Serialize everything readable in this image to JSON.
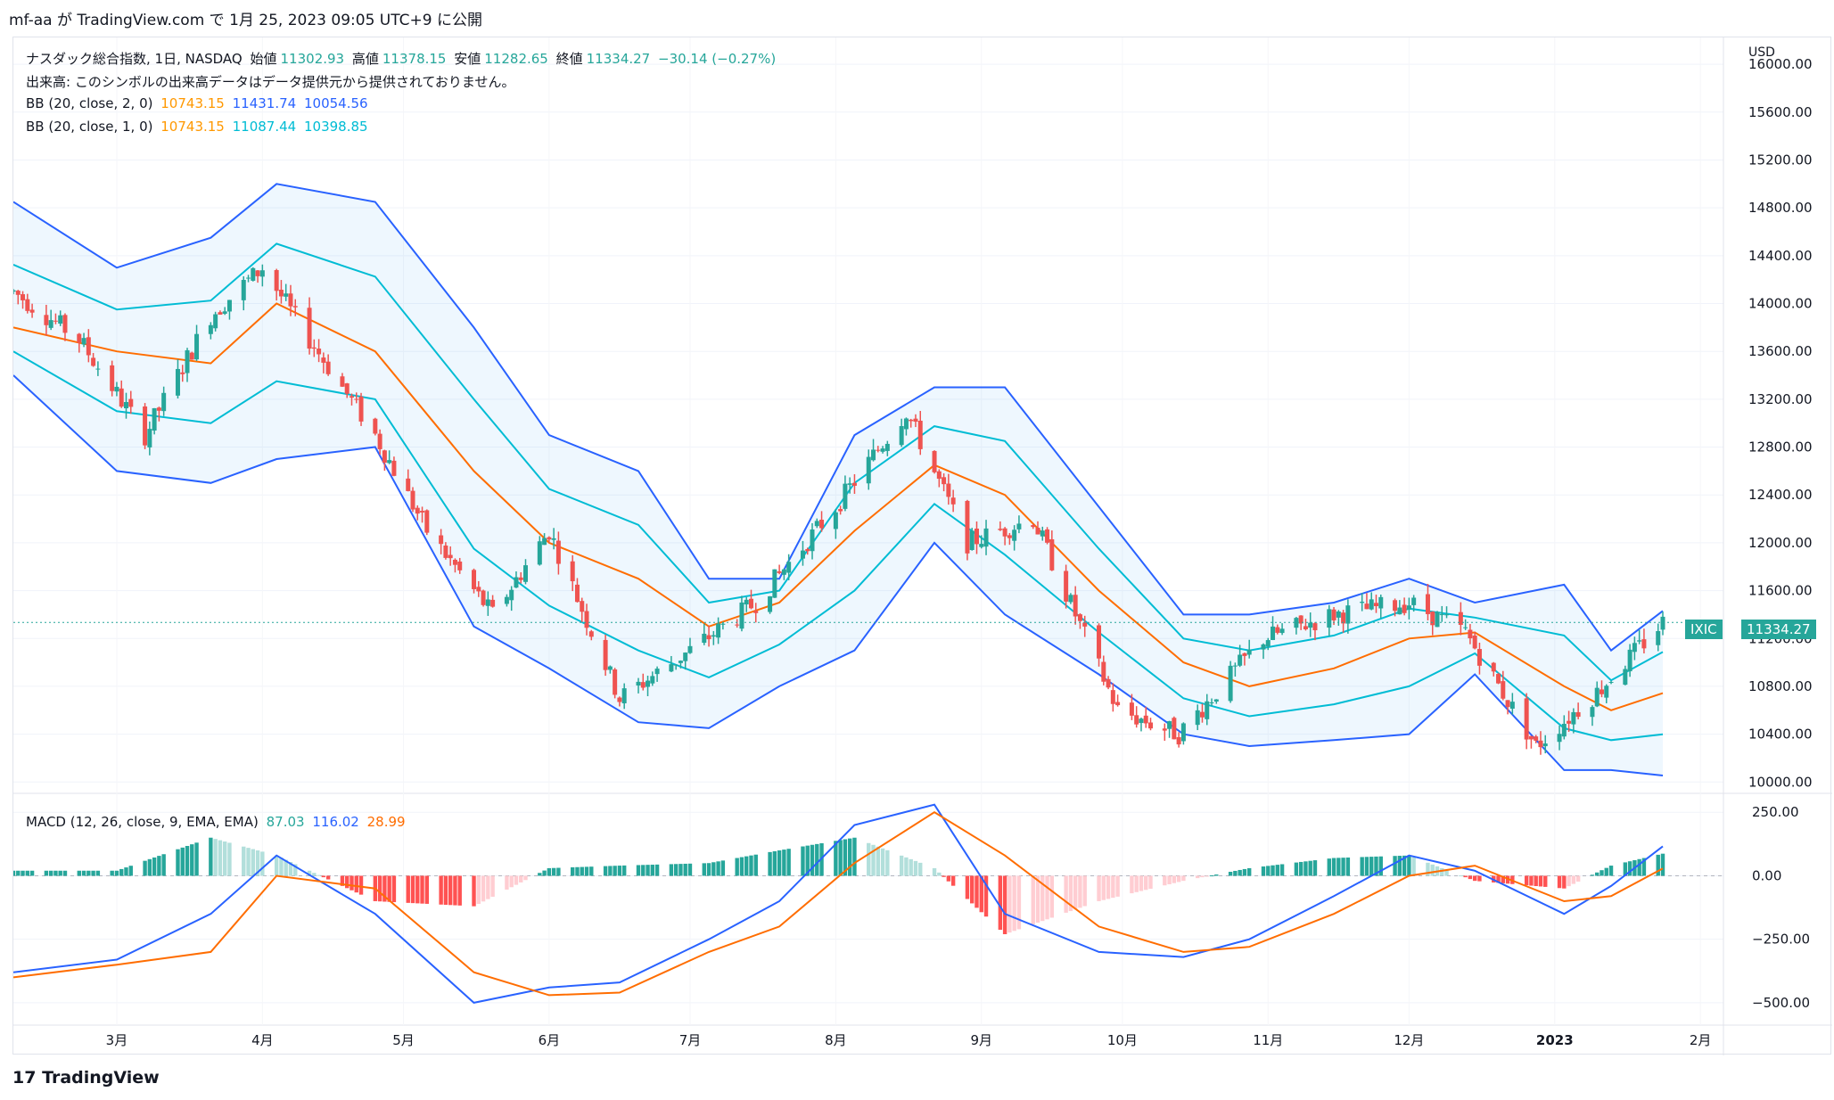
{
  "header": {
    "title": "mf-aa が TradingView.com で 1月 25, 2023 09:05 UTC+9 に公開"
  },
  "legend": {
    "symbol": "ナスダック総合指数, 1日, NASDAQ",
    "open_label": "始値",
    "open": "11302.93",
    "high_label": "高値",
    "high": "11378.15",
    "low_label": "安値",
    "low": "11282.65",
    "close_label": "終値",
    "close": "11334.27",
    "change": "−30.14 (−0.27%)",
    "volume_note": "出来高: このシンボルの出来高データはデータ提供元から提供されておりません。",
    "bb2_label": "BB (20, close, 2, 0)",
    "bb2_mid": "10743.15",
    "bb2_upper": "11431.74",
    "bb2_lower": "10054.56",
    "bb1_label": "BB (20, close, 1, 0)",
    "bb1_mid": "10743.15",
    "bb1_upper": "11087.44",
    "bb1_lower": "10398.85",
    "macd_label": "MACD (12, 26, close, 9, EMA, EMA)",
    "macd_hist": "87.03",
    "macd": "116.02",
    "signal": "28.99"
  },
  "axis": {
    "currency": "USD",
    "price_ticks": [
      "16000.00",
      "15600.00",
      "15200.00",
      "14800.00",
      "14400.00",
      "14000.00",
      "13600.00",
      "13200.00",
      "12800.00",
      "12400.00",
      "12000.00",
      "11600.00",
      "11200.00",
      "10800.00",
      "10400.00",
      "10000.00"
    ],
    "macd_ticks": [
      "250.00",
      "0.00",
      "−250.00",
      "−500.00"
    ],
    "month_labels": [
      "3月",
      "4月",
      "5月",
      "6月",
      "7月",
      "8月",
      "9月",
      "10月",
      "11月",
      "12月",
      "2023",
      "2月"
    ]
  },
  "last_price": {
    "symbol": "IXIC",
    "value": "11334.27"
  },
  "footer": {
    "brand": "TradingView"
  },
  "colors": {
    "up": "#26a69a",
    "down": "#ef5350",
    "bb_outer": "#2962ff",
    "bb_inner": "#00bcd4",
    "bb_mid": "#ff6d00",
    "macd": "#2962ff",
    "signal": "#ff6d00"
  },
  "chart_data": {
    "type": "candlestick",
    "x_range": [
      "2022-02-07",
      "2023-01-24"
    ],
    "ylim": [
      9950,
      16150
    ],
    "macd_ylim": [
      -560,
      300
    ],
    "price_series": [
      {
        "date": "2022-02-07",
        "c": 14100
      },
      {
        "date": "2022-02-21",
        "c": 13700
      },
      {
        "date": "2022-03-07",
        "c": 12900
      },
      {
        "date": "2022-03-21",
        "c": 13900
      },
      {
        "date": "2022-04-01",
        "c": 14300
      },
      {
        "date": "2022-04-11",
        "c": 13700
      },
      {
        "date": "2022-04-25",
        "c": 12900
      },
      {
        "date": "2022-05-06",
        "c": 12100
      },
      {
        "date": "2022-05-20",
        "c": 11400
      },
      {
        "date": "2022-06-01",
        "c": 12100
      },
      {
        "date": "2022-06-16",
        "c": 10700
      },
      {
        "date": "2022-07-01",
        "c": 11100
      },
      {
        "date": "2022-07-15",
        "c": 11500
      },
      {
        "date": "2022-08-01",
        "c": 12300
      },
      {
        "date": "2022-08-16",
        "c": 13100
      },
      {
        "date": "2022-08-29",
        "c": 12000
      },
      {
        "date": "2022-09-12",
        "c": 12200
      },
      {
        "date": "2022-09-30",
        "c": 10600
      },
      {
        "date": "2022-10-13",
        "c": 10400
      },
      {
        "date": "2022-10-31",
        "c": 11200
      },
      {
        "date": "2022-11-15",
        "c": 11400
      },
      {
        "date": "2022-12-01",
        "c": 11500
      },
      {
        "date": "2022-12-13",
        "c": 11250
      },
      {
        "date": "2022-12-28",
        "c": 10300
      },
      {
        "date": "2023-01-10",
        "c": 10750
      },
      {
        "date": "2023-01-24",
        "c": 11334
      }
    ],
    "bb_mid": [
      {
        "date": "2022-02-07",
        "v": 13800
      },
      {
        "date": "2022-03-01",
        "v": 13600
      },
      {
        "date": "2022-03-21",
        "v": 13500
      },
      {
        "date": "2022-04-04",
        "v": 14000
      },
      {
        "date": "2022-04-25",
        "v": 13600
      },
      {
        "date": "2022-05-16",
        "v": 12600
      },
      {
        "date": "2022-06-01",
        "v": 12000
      },
      {
        "date": "2022-06-20",
        "v": 11700
      },
      {
        "date": "2022-07-05",
        "v": 11300
      },
      {
        "date": "2022-07-20",
        "v": 11500
      },
      {
        "date": "2022-08-05",
        "v": 12100
      },
      {
        "date": "2022-08-22",
        "v": 12650
      },
      {
        "date": "2022-09-06",
        "v": 12400
      },
      {
        "date": "2022-09-26",
        "v": 11600
      },
      {
        "date": "2022-10-14",
        "v": 11000
      },
      {
        "date": "2022-10-28",
        "v": 10800
      },
      {
        "date": "2022-11-15",
        "v": 10950
      },
      {
        "date": "2022-12-01",
        "v": 11200
      },
      {
        "date": "2022-12-15",
        "v": 11250
      },
      {
        "date": "2023-01-03",
        "v": 10800
      },
      {
        "date": "2023-01-13",
        "v": 10600
      },
      {
        "date": "2023-01-24",
        "v": 10743
      }
    ],
    "bb_upper2": [
      {
        "date": "2022-02-07",
        "v": 14850
      },
      {
        "date": "2022-03-01",
        "v": 14300
      },
      {
        "date": "2022-03-21",
        "v": 14550
      },
      {
        "date": "2022-04-04",
        "v": 15000
      },
      {
        "date": "2022-04-25",
        "v": 14850
      },
      {
        "date": "2022-05-16",
        "v": 13800
      },
      {
        "date": "2022-06-01",
        "v": 12900
      },
      {
        "date": "2022-06-20",
        "v": 12600
      },
      {
        "date": "2022-07-05",
        "v": 11700
      },
      {
        "date": "2022-07-20",
        "v": 11700
      },
      {
        "date": "2022-08-05",
        "v": 12900
      },
      {
        "date": "2022-08-22",
        "v": 13300
      },
      {
        "date": "2022-09-06",
        "v": 13300
      },
      {
        "date": "2022-09-26",
        "v": 12300
      },
      {
        "date": "2022-10-14",
        "v": 11400
      },
      {
        "date": "2022-10-28",
        "v": 11400
      },
      {
        "date": "2022-11-15",
        "v": 11500
      },
      {
        "date": "2022-12-01",
        "v": 11700
      },
      {
        "date": "2022-12-15",
        "v": 11500
      },
      {
        "date": "2023-01-03",
        "v": 11650
      },
      {
        "date": "2023-01-13",
        "v": 11100
      },
      {
        "date": "2023-01-24",
        "v": 11431
      }
    ],
    "bb_lower2": [
      {
        "date": "2022-02-07",
        "v": 13400
      },
      {
        "date": "2022-03-01",
        "v": 12600
      },
      {
        "date": "2022-03-21",
        "v": 12500
      },
      {
        "date": "2022-04-04",
        "v": 12700
      },
      {
        "date": "2022-04-25",
        "v": 12800
      },
      {
        "date": "2022-05-16",
        "v": 11300
      },
      {
        "date": "2022-06-01",
        "v": 10950
      },
      {
        "date": "2022-06-20",
        "v": 10500
      },
      {
        "date": "2022-07-05",
        "v": 10450
      },
      {
        "date": "2022-07-20",
        "v": 10800
      },
      {
        "date": "2022-08-05",
        "v": 11100
      },
      {
        "date": "2022-08-22",
        "v": 12000
      },
      {
        "date": "2022-09-06",
        "v": 11400
      },
      {
        "date": "2022-09-26",
        "v": 10900
      },
      {
        "date": "2022-10-14",
        "v": 10400
      },
      {
        "date": "2022-10-28",
        "v": 10300
      },
      {
        "date": "2022-11-15",
        "v": 10350
      },
      {
        "date": "2022-12-01",
        "v": 10400
      },
      {
        "date": "2022-12-15",
        "v": 10900
      },
      {
        "date": "2023-01-03",
        "v": 10100
      },
      {
        "date": "2023-01-13",
        "v": 10100
      },
      {
        "date": "2023-01-24",
        "v": 10054
      }
    ],
    "macd_series": [
      {
        "date": "2022-02-07",
        "m": -380,
        "s": -400
      },
      {
        "date": "2022-03-01",
        "m": -330,
        "s": -350
      },
      {
        "date": "2022-03-21",
        "m": -150,
        "s": -300
      },
      {
        "date": "2022-04-04",
        "m": 80,
        "s": 0
      },
      {
        "date": "2022-04-25",
        "m": -150,
        "s": -50
      },
      {
        "date": "2022-05-16",
        "m": -500,
        "s": -380
      },
      {
        "date": "2022-06-01",
        "m": -440,
        "s": -470
      },
      {
        "date": "2022-06-16",
        "m": -420,
        "s": -460
      },
      {
        "date": "2022-07-05",
        "m": -250,
        "s": -300
      },
      {
        "date": "2022-07-20",
        "m": -100,
        "s": -200
      },
      {
        "date": "2022-08-05",
        "m": 200,
        "s": 50
      },
      {
        "date": "2022-08-22",
        "m": 280,
        "s": 250
      },
      {
        "date": "2022-09-06",
        "m": -150,
        "s": 80
      },
      {
        "date": "2022-09-26",
        "m": -300,
        "s": -200
      },
      {
        "date": "2022-10-14",
        "m": -320,
        "s": -300
      },
      {
        "date": "2022-10-28",
        "m": -250,
        "s": -280
      },
      {
        "date": "2022-11-15",
        "m": -80,
        "s": -150
      },
      {
        "date": "2022-12-01",
        "m": 80,
        "s": 0
      },
      {
        "date": "2022-12-15",
        "m": 20,
        "s": 40
      },
      {
        "date": "2023-01-03",
        "m": -150,
        "s": -100
      },
      {
        "date": "2023-01-13",
        "m": -40,
        "s": -80
      },
      {
        "date": "2023-01-24",
        "m": 116,
        "s": 29
      }
    ]
  }
}
